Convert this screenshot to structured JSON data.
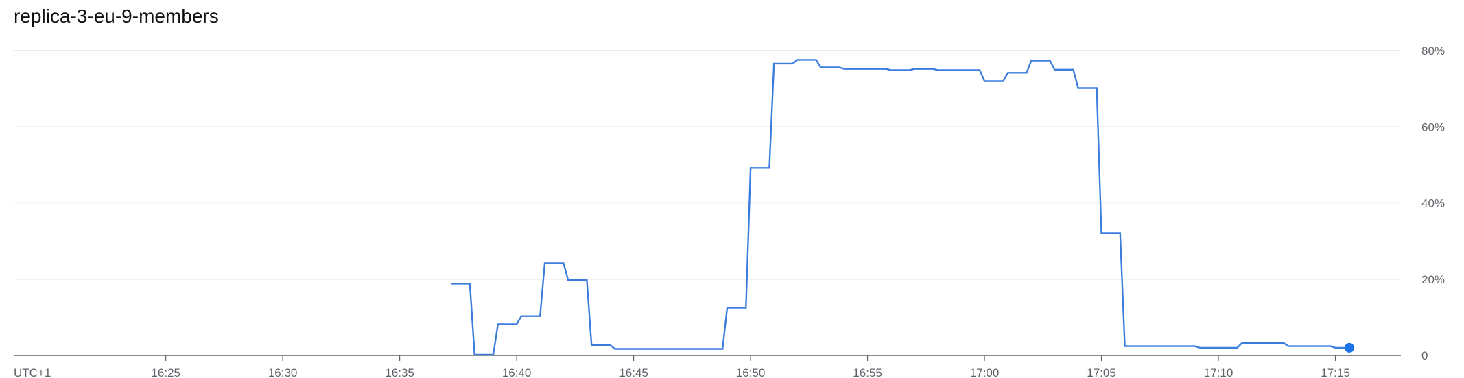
{
  "chart_data": {
    "type": "line",
    "title": "replica-3-eu-9-members",
    "timezone_label": "UTC+1",
    "x_tick_labels": [
      "16:25",
      "16:30",
      "16:35",
      "16:40",
      "16:45",
      "16:50",
      "16:55",
      "17:00",
      "17:05",
      "17:10",
      "17:15"
    ],
    "x_tick_minutes": [
      985,
      990,
      995,
      1000,
      1005,
      1010,
      1015,
      1020,
      1025,
      1030,
      1035
    ],
    "xlim": [
      978.5,
      1037.8
    ],
    "y_tick_labels": [
      "0",
      "20%",
      "40%",
      "60%",
      "80%"
    ],
    "y_tick_values": [
      0,
      20,
      40,
      60,
      80
    ],
    "ylim": [
      0,
      80
    ],
    "grid": true,
    "line_color": "#3b7ddd",
    "series": [
      {
        "x": [
          997.2,
          998.0,
          998.2,
          999.0,
          999.2,
          1000.0,
          1000.2,
          1001.0,
          1001.2,
          1002.0,
          1002.2,
          1003.0,
          1003.2,
          1004.0,
          1004.2,
          1007.0,
          1008.8,
          1009.0,
          1009.8,
          1010.0,
          1010.8,
          1011.0,
          1011.8,
          1012.0,
          1012.8,
          1013.0,
          1013.8,
          1014.0,
          1014.8,
          1015.0,
          1015.8,
          1016.0,
          1016.8,
          1017.0,
          1017.8,
          1018.0,
          1018.8,
          1019.8,
          1020.0,
          1020.8,
          1021.0,
          1021.8,
          1022.0,
          1022.8,
          1023.0,
          1023.8,
          1024.0,
          1024.8,
          1025.0,
          1025.8,
          1026.0,
          1026.8,
          1027.0,
          1029.0,
          1029.2,
          1030.8,
          1031.0,
          1031.8,
          1032.0,
          1032.8,
          1033.0,
          1034.8,
          1035.0,
          1035.6
        ],
        "y": [
          18.8,
          18.8,
          0.2,
          0.2,
          8.2,
          8.2,
          10.3,
          10.3,
          24.2,
          24.2,
          19.8,
          19.8,
          2.7,
          2.7,
          1.7,
          1.7,
          1.7,
          12.5,
          12.5,
          49.2,
          49.2,
          76.6,
          76.6,
          77.6,
          77.6,
          75.6,
          75.6,
          75.2,
          75.2,
          75.2,
          75.2,
          74.9,
          74.9,
          75.2,
          75.2,
          74.9,
          74.9,
          74.9,
          72.0,
          72.0,
          74.2,
          74.2,
          77.4,
          77.4,
          75.0,
          75.0,
          70.2,
          70.2,
          32.1,
          32.1,
          2.4,
          2.4,
          2.4,
          2.4,
          2.0,
          2.0,
          3.2,
          3.2,
          3.2,
          3.2,
          2.4,
          2.4,
          2.0,
          2.0
        ]
      }
    ]
  }
}
